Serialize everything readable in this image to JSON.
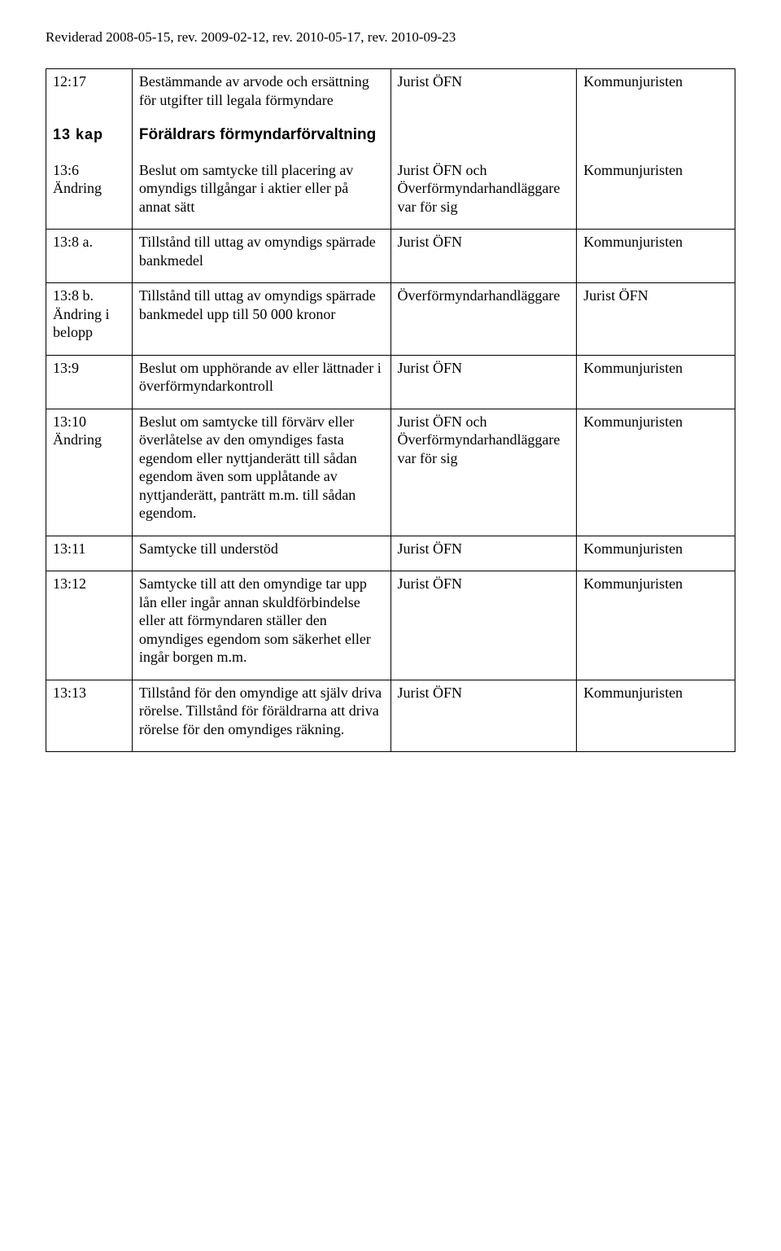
{
  "revision": "Reviderad 2008-05-15, rev. 2009-02-12, rev. 2010-05-17, rev. 2010-09-23",
  "sectionHead": {
    "chapter": "13 kap",
    "title": "Föräldrars förmyndarförvaltning"
  },
  "rows": {
    "r12_17": {
      "ref": "12:17",
      "desc": "Bestämmande av arvode och ersättning för utgifter till legala förmyndare",
      "who": "Jurist ÖFN",
      "ans": "Kommunjuristen"
    },
    "r13_6": {
      "ref": "13:6\nÄndring",
      "desc": "Beslut om samtycke till placering av omyndigs tillgångar i aktier eller på annat sätt",
      "who": "Jurist ÖFN och Överförmyndarhandläggare var för sig",
      "ans": "Kommunjuristen"
    },
    "r13_8a": {
      "ref": "13:8 a.",
      "desc": "Tillstånd till uttag av omyndigs spärrade bankmedel",
      "who": "Jurist ÖFN",
      "ans": "Kommunjuristen"
    },
    "r13_8b": {
      "ref": "13:8 b.\nÄndring i belopp",
      "desc": "Tillstånd till uttag av omyndigs spärrade bankmedel upp till 50 000 kronor",
      "who": "Överförmyndarhandläggare",
      "ans": "Jurist ÖFN"
    },
    "r13_9": {
      "ref": "13:9",
      "desc": "Beslut om upphörande av eller lättnader i överförmyndarkontroll",
      "who": "Jurist ÖFN",
      "ans": "Kommunjuristen"
    },
    "r13_10": {
      "ref": "13:10\nÄndring",
      "desc": "Beslut om samtycke till förvärv eller överlåtelse av den omyndiges fasta egendom eller nyttjanderätt till sådan egendom även som upplåtande av nyttjanderätt, panträtt m.m. till sådan egendom.",
      "who": "Jurist ÖFN och Överförmyndarhandläggare var för sig",
      "ans": "Kommunjuristen"
    },
    "r13_11": {
      "ref": "13:11",
      "desc": "Samtycke till understöd",
      "who": "Jurist ÖFN",
      "ans": "Kommunjuristen"
    },
    "r13_12": {
      "ref": "13:12",
      "desc": "Samtycke till att den omyndige tar upp lån eller ingår annan skuldförbindelse eller att förmyndaren ställer den omyndiges egendom som säkerhet eller ingår borgen m.m.",
      "who": "Jurist ÖFN",
      "ans": "Kommunjuristen"
    },
    "r13_13": {
      "ref": "13:13",
      "desc": "Tillstånd för den omyndige att själv driva rörelse. Tillstånd för föräldrarna att driva rörelse för den omyndiges räkning.",
      "who": "Jurist ÖFN",
      "ans": "Kommunjuristen"
    }
  }
}
